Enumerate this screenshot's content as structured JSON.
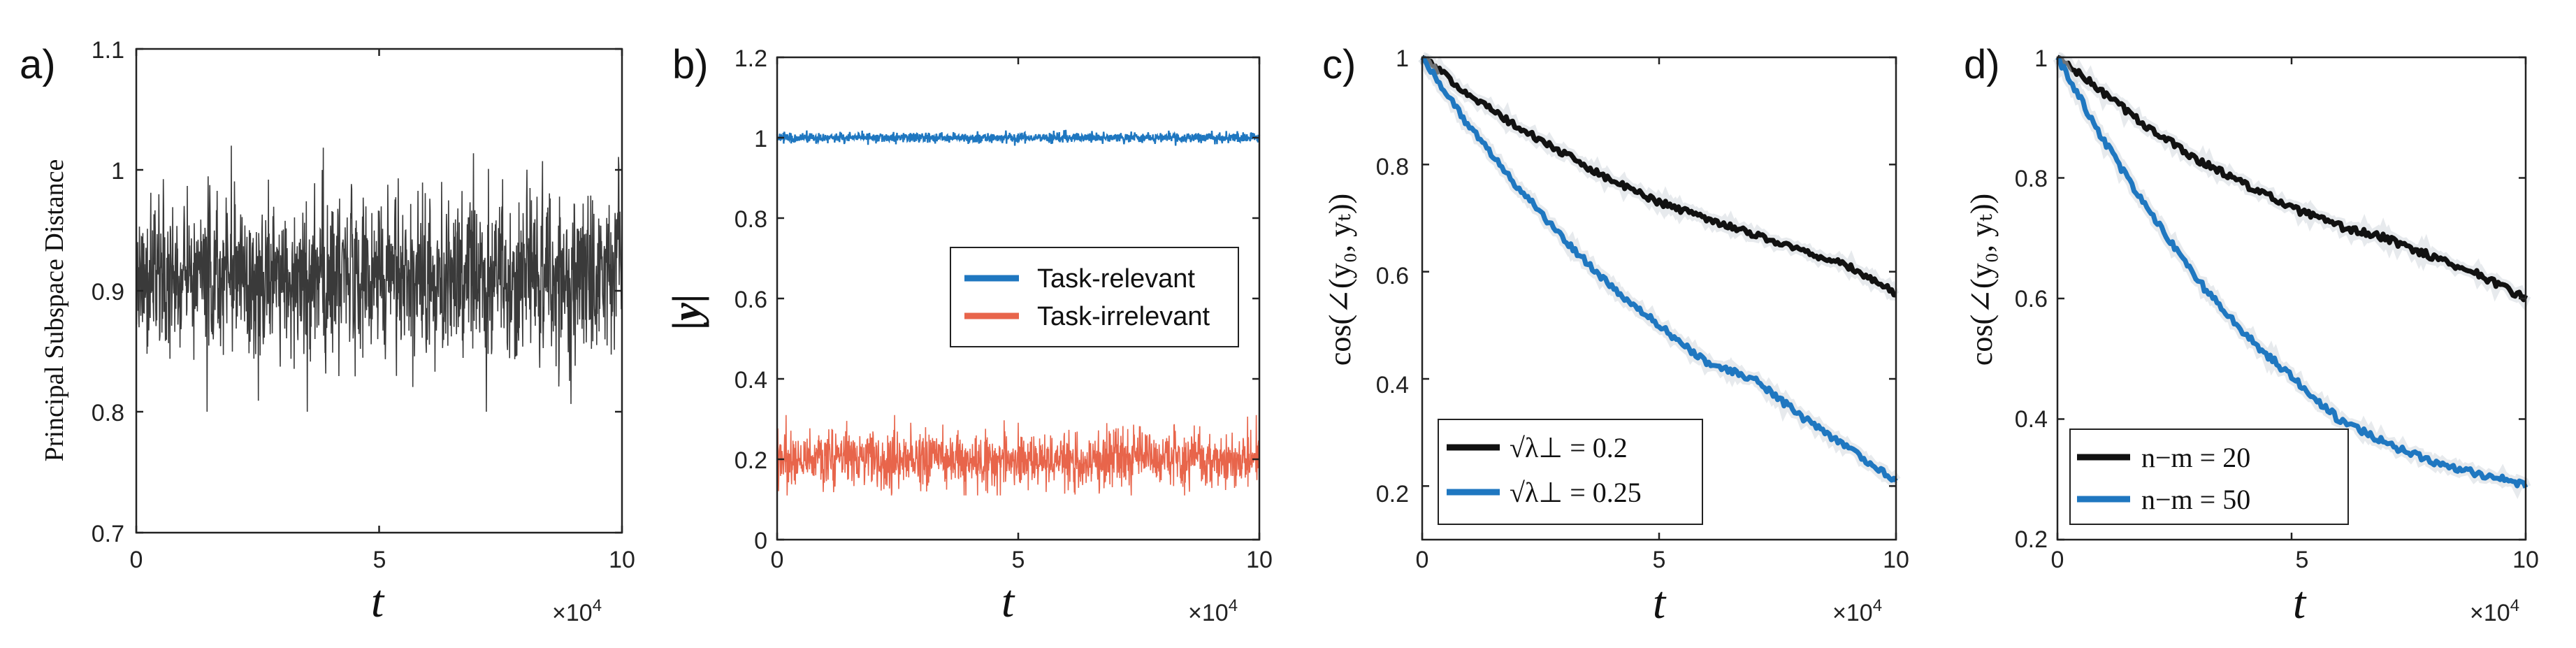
{
  "chart_data": [
    {
      "panel_label": "a)",
      "type": "line",
      "ylabel": "Principal Subspace Distance",
      "xlabel": "t",
      "x_multiplier": "×10",
      "x_multiplier_exp": "4",
      "xlim": [
        0,
        10
      ],
      "ylim": [
        0.7,
        1.1
      ],
      "xticks": [
        0,
        5,
        10
      ],
      "yticks": [
        0.7,
        0.8,
        0.9,
        1,
        1.1
      ],
      "ytick_labels": [
        "0.7",
        "0.8",
        "0.9",
        "1",
        "1.1"
      ],
      "series": [
        {
          "name": "distance",
          "color": "#3a3a3a",
          "mean": 0.91,
          "noise_min": 0.8,
          "noise_max": 1.02
        }
      ]
    },
    {
      "panel_label": "b)",
      "type": "line",
      "ylabel": "|y|",
      "xlabel": "t",
      "x_multiplier": "×10",
      "x_multiplier_exp": "4",
      "xlim": [
        0,
        10
      ],
      "ylim": [
        0,
        1.2
      ],
      "xticks": [
        0,
        5,
        10
      ],
      "yticks": [
        0,
        0.2,
        0.4,
        0.6,
        0.8,
        1,
        1.2
      ],
      "ytick_labels": [
        "0",
        "0.2",
        "0.4",
        "0.6",
        "0.8",
        "1",
        "1.2"
      ],
      "legend": [
        "Task-relevant",
        "Task-irrelevant"
      ],
      "series": [
        {
          "name": "Task-relevant",
          "color": "#1f77c0",
          "mean": 1.0,
          "noise_min": 0.98,
          "noise_max": 1.02
        },
        {
          "name": "Task-irrelevant",
          "color": "#e8654b",
          "mean": 0.2,
          "noise_min": 0.11,
          "noise_max": 0.31
        }
      ]
    },
    {
      "panel_label": "c)",
      "type": "line",
      "ylabel": "cos(∠(y₀, yₜ))",
      "xlabel": "t",
      "x_multiplier": "×10",
      "x_multiplier_exp": "4",
      "xlim": [
        0,
        10
      ],
      "ylim": [
        0.1,
        1.0
      ],
      "xticks": [
        0,
        5,
        10
      ],
      "yticks": [
        0.2,
        0.4,
        0.6,
        0.8,
        1
      ],
      "ytick_labels": [
        "0.2",
        "0.4",
        "0.6",
        "0.8",
        "1"
      ],
      "legend": [
        "√λ⊥ = 0.2",
        "√λ⊥ = 0.25"
      ],
      "series": [
        {
          "name": "√λ⊥ = 0.2",
          "color": "#111111",
          "x": [
            0,
            1,
            2,
            3,
            4,
            5,
            6,
            7,
            8,
            9,
            10
          ],
          "y": [
            1.0,
            0.93,
            0.87,
            0.82,
            0.77,
            0.73,
            0.7,
            0.67,
            0.64,
            0.61,
            0.56
          ]
        },
        {
          "name": "√λ⊥ = 0.25",
          "color": "#1f77c0",
          "x": [
            0,
            1,
            2,
            3,
            4,
            5,
            6,
            7,
            8,
            9,
            10
          ],
          "y": [
            1.0,
            0.87,
            0.76,
            0.66,
            0.57,
            0.5,
            0.43,
            0.4,
            0.33,
            0.27,
            0.21
          ]
        }
      ]
    },
    {
      "panel_label": "d)",
      "type": "line",
      "ylabel": "cos(∠(y₀, yₜ))",
      "xlabel": "t",
      "x_multiplier": "×10",
      "x_multiplier_exp": "4",
      "xlim": [
        0,
        10
      ],
      "ylim": [
        0.2,
        1.0
      ],
      "xticks": [
        0,
        5,
        10
      ],
      "yticks": [
        0.2,
        0.4,
        0.6,
        0.8,
        1
      ],
      "ytick_labels": [
        "0.2",
        "0.4",
        "0.6",
        "0.8",
        "1"
      ],
      "legend": [
        "n−m = 20",
        "n−m = 50"
      ],
      "series": [
        {
          "name": "n−m = 20",
          "color": "#111111",
          "x": [
            0,
            1,
            2,
            3,
            4,
            5,
            6,
            7,
            8,
            9,
            10
          ],
          "y": [
            1.0,
            0.94,
            0.88,
            0.83,
            0.79,
            0.75,
            0.72,
            0.7,
            0.67,
            0.64,
            0.6
          ]
        },
        {
          "name": "n−m = 50",
          "color": "#1f77c0",
          "x": [
            0,
            1,
            2,
            3,
            4,
            5,
            6,
            7,
            8,
            9,
            10
          ],
          "y": [
            1.0,
            0.86,
            0.74,
            0.63,
            0.54,
            0.47,
            0.4,
            0.36,
            0.33,
            0.31,
            0.29
          ]
        }
      ]
    }
  ]
}
